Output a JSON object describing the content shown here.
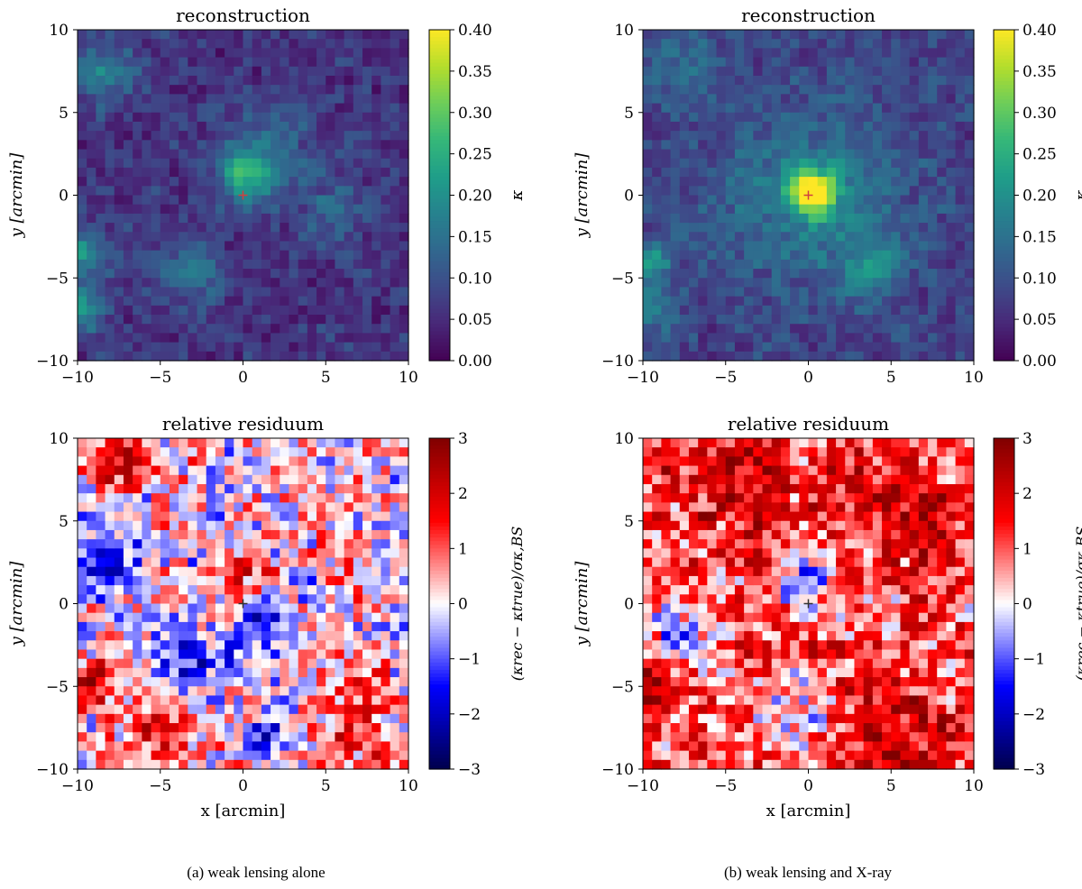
{
  "chart_data": [
    {
      "type": "heatmap",
      "panel": "a",
      "title": "reconstruction",
      "xlabel": "",
      "ylabel": "y [arcmin]",
      "xlim": [
        -10,
        10
      ],
      "ylim": [
        -10,
        10
      ],
      "xticks": [
        "−10",
        "−5",
        "0",
        "5",
        "10"
      ],
      "yticks": [
        "−10",
        "−5",
        "0",
        "5",
        "10"
      ],
      "colormap": "viridis",
      "colorbar": {
        "label": "κ",
        "range": [
          0.0,
          0.4
        ],
        "ticks": [
          "0.00",
          "0.05",
          "0.10",
          "0.15",
          "0.20",
          "0.25",
          "0.30",
          "0.35",
          "0.40"
        ]
      },
      "background_level": 0.06,
      "features": [
        {
          "x": 0.2,
          "y": 1.2,
          "kappa": 0.24,
          "spread": 1.2
        },
        {
          "x": -8.5,
          "y": 7.5,
          "kappa": 0.17,
          "spread": 1.3
        },
        {
          "x": -9.6,
          "y": -3.5,
          "kappa": 0.2,
          "spread": 1.0
        },
        {
          "x": -9.6,
          "y": -6.8,
          "kappa": 0.2,
          "spread": 0.9
        },
        {
          "x": -3.5,
          "y": -4.5,
          "kappa": 0.15,
          "spread": 1.5
        },
        {
          "x": 2.0,
          "y": 3.0,
          "kappa": 0.12,
          "spread": 2.0
        },
        {
          "x": 5.5,
          "y": -1.0,
          "kappa": 0.12,
          "spread": 1.5
        }
      ],
      "center_marker": {
        "x": 0.0,
        "y": 0.0,
        "color": "#d04040"
      }
    },
    {
      "type": "heatmap",
      "panel": "b",
      "title": "reconstruction",
      "xlabel": "",
      "ylabel": "y [arcmin]",
      "xlim": [
        -10,
        10
      ],
      "ylim": [
        -10,
        10
      ],
      "xticks": [
        "−10",
        "−5",
        "0",
        "5",
        "10"
      ],
      "yticks": [
        "−10",
        "−5",
        "0",
        "5",
        "10"
      ],
      "colormap": "viridis",
      "colorbar": {
        "label": "κ",
        "range": [
          0.0,
          0.4
        ],
        "ticks": [
          "0.00",
          "0.05",
          "0.10",
          "0.15",
          "0.20",
          "0.25",
          "0.30",
          "0.35",
          "0.40"
        ]
      },
      "background_level": 0.08,
      "features": [
        {
          "x": 0.3,
          "y": 0.2,
          "kappa": 0.38,
          "spread": 0.9
        },
        {
          "x": 0.0,
          "y": 0.0,
          "kappa": 0.18,
          "spread": 3.5
        },
        {
          "x": -9.6,
          "y": -4.0,
          "kappa": 0.2,
          "spread": 1.0
        },
        {
          "x": -9.6,
          "y": -6.8,
          "kappa": 0.2,
          "spread": 0.9
        },
        {
          "x": 3.8,
          "y": -4.5,
          "kappa": 0.2,
          "spread": 1.2
        },
        {
          "x": -8.0,
          "y": 8.0,
          "kappa": 0.15,
          "spread": 1.5
        }
      ],
      "center_marker": {
        "x": 0.0,
        "y": 0.0,
        "color": "#d04040"
      }
    },
    {
      "type": "heatmap",
      "panel": "a",
      "title": "relative residuum",
      "xlabel": "x [arcmin]",
      "ylabel": "y [arcmin]",
      "xlim": [
        -10,
        10
      ],
      "ylim": [
        -10,
        10
      ],
      "xticks": [
        "−10",
        "−5",
        "0",
        "5",
        "10"
      ],
      "yticks": [
        "−10",
        "−5",
        "0",
        "5",
        "10"
      ],
      "colormap": "seismic",
      "colorbar": {
        "label": "(κrec − κtrue)/σκ,BS",
        "range": [
          -3,
          3
        ],
        "ticks": [
          "−3",
          "−2",
          "−1",
          "0",
          "1",
          "2",
          "3"
        ]
      },
      "background_level": 0.1,
      "features": [
        {
          "x": -7.0,
          "y": 8.5,
          "kappa": 2.0,
          "spread": 1.2
        },
        {
          "x": -8.0,
          "y": 2.5,
          "kappa": -1.8,
          "spread": 1.5
        },
        {
          "x": -3.5,
          "y": -3.5,
          "kappa": -1.8,
          "spread": 1.8
        },
        {
          "x": 1.5,
          "y": -1.0,
          "kappa": -1.5,
          "spread": 1.2
        },
        {
          "x": 0.0,
          "y": 2.0,
          "kappa": 2.0,
          "spread": 0.8
        },
        {
          "x": -5.0,
          "y": -7.5,
          "kappa": 1.6,
          "spread": 2.0
        },
        {
          "x": 7.0,
          "y": -7.5,
          "kappa": 1.5,
          "spread": 1.8
        },
        {
          "x": 1.5,
          "y": -8.0,
          "kappa": -2.2,
          "spread": 0.8
        },
        {
          "x": -9.5,
          "y": -5.0,
          "kappa": 2.2,
          "spread": 1.0
        }
      ],
      "center_marker": {
        "x": 0.0,
        "y": 0.0,
        "color": "#333333"
      }
    },
    {
      "type": "heatmap",
      "panel": "b",
      "title": "relative residuum",
      "xlabel": "x [arcmin]",
      "ylabel": "y [arcmin]",
      "xlim": [
        -10,
        10
      ],
      "ylim": [
        -10,
        10
      ],
      "xticks": [
        "−10",
        "−5",
        "0",
        "5",
        "10"
      ],
      "yticks": [
        "−10",
        "−5",
        "0",
        "5",
        "10"
      ],
      "colormap": "seismic",
      "colorbar": {
        "label": "(κrec − κtrue)/σκ,BS",
        "range": [
          -3,
          3
        ],
        "ticks": [
          "−3",
          "−2",
          "−1",
          "0",
          "1",
          "2",
          "3"
        ]
      },
      "background_level": 1.1,
      "features": [
        {
          "x": -5.0,
          "y": 8.0,
          "kappa": 1.2,
          "spread": 2.5
        },
        {
          "x": 6.0,
          "y": 5.5,
          "kappa": 1.2,
          "spread": 2.0
        },
        {
          "x": 5.0,
          "y": -7.5,
          "kappa": 1.0,
          "spread": 2.5
        },
        {
          "x": 0.0,
          "y": 1.5,
          "kappa": -2.2,
          "spread": 1.2
        },
        {
          "x": -8.0,
          "y": -2.0,
          "kappa": -1.6,
          "spread": 1.8
        },
        {
          "x": -1.0,
          "y": -7.0,
          "kappa": -1.2,
          "spread": 1.8
        },
        {
          "x": -9.5,
          "y": -4.5,
          "kappa": 1.8,
          "spread": 1.2
        }
      ],
      "center_marker": {
        "x": 0.0,
        "y": 0.0,
        "color": "#333333"
      }
    }
  ],
  "captions": {
    "a": "(a) weak lensing alone",
    "b": "(b) weak lensing and X-ray"
  }
}
